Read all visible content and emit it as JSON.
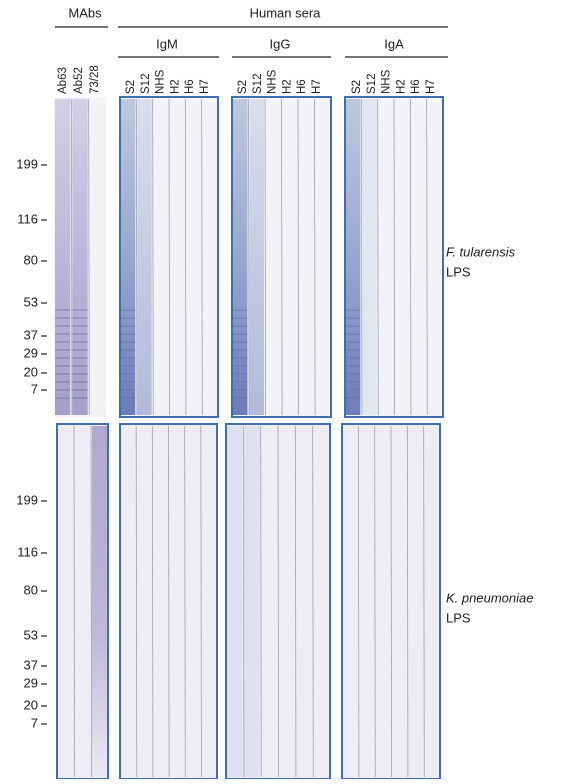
{
  "header": {
    "mabs": "MAbs",
    "human_sera": "Human sera",
    "groups": [
      "IgM",
      "IgG",
      "IgA"
    ]
  },
  "lanes": {
    "mabs": [
      "Ab63",
      "Ab52",
      "73/28"
    ],
    "sera": [
      "S2",
      "S12",
      "NHS",
      "H2",
      "H6",
      "H7"
    ]
  },
  "markers": [
    "199",
    "116",
    "80",
    "53",
    "37",
    "29",
    "20",
    "7"
  ],
  "panels": [
    {
      "organism": "F. tularensis",
      "antigen": "LPS"
    },
    {
      "organism": "K. pneumoniae",
      "antigen": "LPS"
    }
  ]
}
